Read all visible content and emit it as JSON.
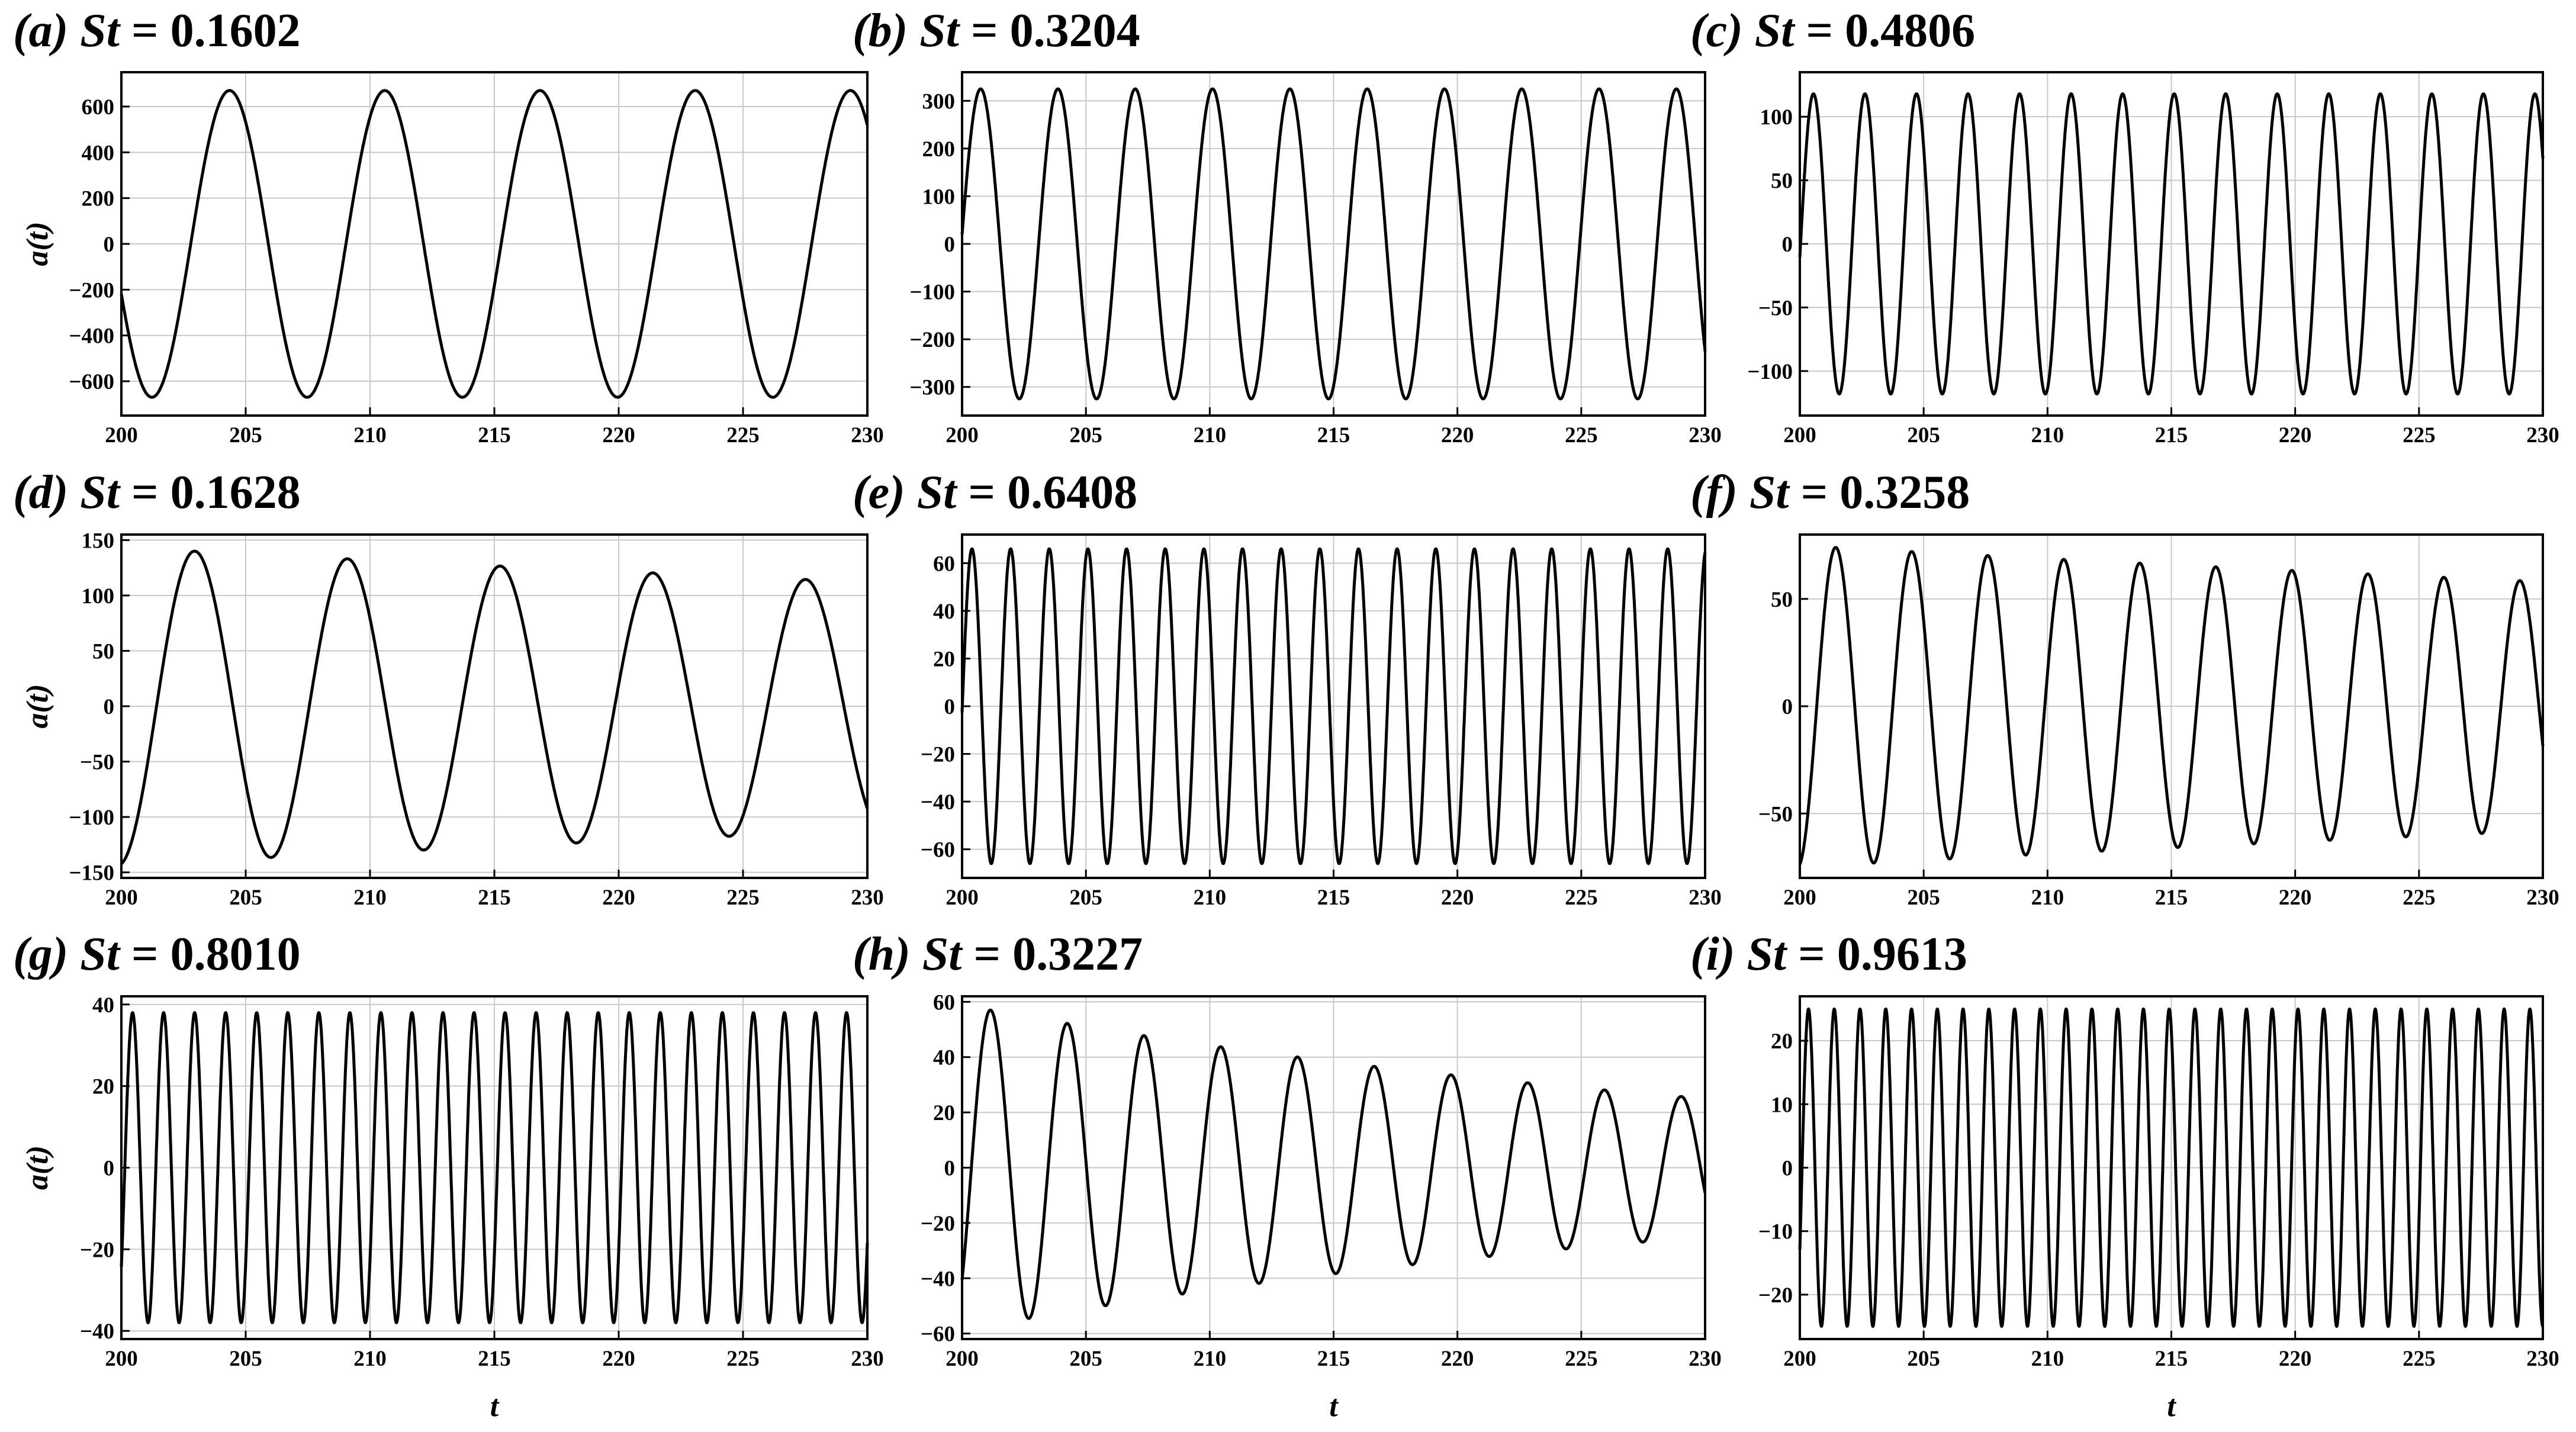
{
  "chart_data": [
    {
      "type": "line",
      "label": "(a)",
      "st_symbol": "St",
      "st_value": "= 0.1602",
      "xlabel": "",
      "ylabel": "a(t)",
      "xlim": [
        200,
        230
      ],
      "ylim": [
        -750,
        750
      ],
      "xticks": [
        200,
        205,
        210,
        215,
        220,
        225,
        230
      ],
      "yticks": [
        -600,
        -400,
        -200,
        0,
        200,
        400,
        600
      ],
      "grid": true,
      "series": {
        "amplitude": 670,
        "decay": 0,
        "frequency": 0.1602,
        "x_at_first_peak": 204.35
      }
    },
    {
      "type": "line",
      "label": "(b)",
      "st_symbol": "St",
      "st_value": "= 0.3204",
      "xlabel": "",
      "ylabel": "",
      "xlim": [
        200,
        230
      ],
      "ylim": [
        -360,
        360
      ],
      "xticks": [
        200,
        205,
        210,
        215,
        220,
        225,
        230
      ],
      "yticks": [
        -300,
        -200,
        -100,
        0,
        100,
        200,
        300
      ],
      "grid": true,
      "series": {
        "amplitude": 325,
        "decay": 0,
        "frequency": 0.3204,
        "x_at_first_peak": 200.75
      }
    },
    {
      "type": "line",
      "label": "(c)",
      "st_symbol": "St",
      "st_value": "= 0.4806",
      "xlabel": "",
      "ylabel": "",
      "xlim": [
        200,
        230
      ],
      "ylim": [
        -135,
        135
      ],
      "xticks": [
        200,
        205,
        210,
        215,
        220,
        225,
        230
      ],
      "yticks": [
        -100,
        -50,
        0,
        50,
        100
      ],
      "grid": true,
      "series": {
        "amplitude": 118,
        "decay": 0,
        "frequency": 0.4806,
        "x_at_first_peak": 200.55
      }
    },
    {
      "type": "line",
      "label": "(d)",
      "st_symbol": "St",
      "st_value": "= 0.1628",
      "xlabel": "",
      "ylabel": "a(t)",
      "xlim": [
        200,
        230
      ],
      "ylim": [
        -155,
        155
      ],
      "xticks": [
        200,
        205,
        210,
        215,
        220,
        225,
        230
      ],
      "yticks": [
        -150,
        -100,
        -50,
        0,
        50,
        100,
        150
      ],
      "grid": true,
      "series": {
        "amplitude": 140,
        "decay": 0.0082,
        "frequency": 0.1628,
        "x_at_first_peak": 202.95
      }
    },
    {
      "type": "line",
      "label": "(e)",
      "st_symbol": "St",
      "st_value": "= 0.6408",
      "xlabel": "",
      "ylabel": "",
      "xlim": [
        200,
        230
      ],
      "ylim": [
        -72,
        72
      ],
      "xticks": [
        200,
        205,
        210,
        215,
        220,
        225,
        230
      ],
      "yticks": [
        -60,
        -40,
        -20,
        0,
        20,
        40,
        60
      ],
      "grid": true,
      "series": {
        "amplitude": 66,
        "decay": 0,
        "frequency": 0.6408,
        "x_at_first_peak": 200.4
      }
    },
    {
      "type": "line",
      "label": "(f)",
      "st_symbol": "St",
      "st_value": "= 0.3258",
      "xlabel": "",
      "ylabel": "",
      "xlim": [
        200,
        230
      ],
      "ylim": [
        -80,
        80
      ],
      "xticks": [
        200,
        205,
        210,
        215,
        220,
        225,
        230
      ],
      "yticks": [
        -50,
        0,
        50
      ],
      "grid": true,
      "series": {
        "amplitude": 74,
        "decay": 0.0085,
        "frequency": 0.3258,
        "x_at_first_peak": 201.45
      }
    },
    {
      "type": "line",
      "label": "(g)",
      "st_symbol": "St",
      "st_value": "= 0.8010",
      "xlabel": "t",
      "ylabel": "a(t)",
      "xlim": [
        200,
        230
      ],
      "ylim": [
        -42,
        42
      ],
      "xticks": [
        200,
        205,
        210,
        215,
        220,
        225,
        230
      ],
      "yticks": [
        -40,
        -20,
        0,
        20,
        40
      ],
      "grid": true,
      "series": {
        "amplitude": 38,
        "decay": 0,
        "frequency": 0.801,
        "x_at_first_peak": 200.45
      }
    },
    {
      "type": "line",
      "label": "(h)",
      "st_symbol": "St",
      "st_value": "= 0.3227",
      "xlabel": "t",
      "ylabel": "",
      "xlim": [
        200,
        230
      ],
      "ylim": [
        -62,
        62
      ],
      "xticks": [
        200,
        205,
        210,
        215,
        220,
        225,
        230
      ],
      "yticks": [
        -60,
        -40,
        -20,
        0,
        20,
        40,
        60
      ],
      "grid": true,
      "series": {
        "amplitude": 57,
        "decay": 0.0285,
        "frequency": 0.3227,
        "x_at_first_peak": 201.15
      }
    },
    {
      "type": "line",
      "label": "(i)",
      "st_symbol": "St",
      "st_value": "= 0.9613",
      "xlabel": "t",
      "ylabel": "",
      "xlim": [
        200,
        230
      ],
      "ylim": [
        -27,
        27
      ],
      "xticks": [
        200,
        205,
        210,
        215,
        220,
        225,
        230
      ],
      "yticks": [
        -20,
        -10,
        0,
        10,
        20
      ],
      "grid": true,
      "series": {
        "amplitude": 25,
        "decay": 0,
        "frequency": 0.9613,
        "x_at_first_peak": 200.35
      }
    }
  ]
}
